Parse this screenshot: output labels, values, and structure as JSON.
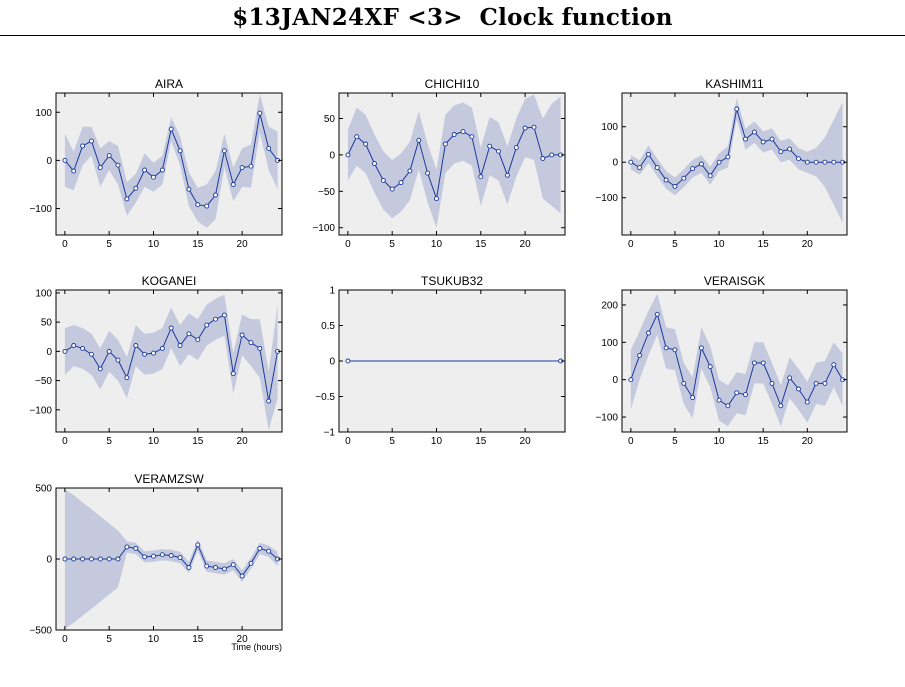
{
  "page_title": "$13JAN24XF <3>  Clock function",
  "x_axis_label": "Time (hours)",
  "colors": {
    "background": "#eeeeee",
    "band": "#c5c9de",
    "line": "#1a3a9c"
  },
  "chart_data": [
    {
      "type": "line",
      "title": "AIRA",
      "x": [
        0,
        1,
        2,
        3,
        4,
        5,
        6,
        7,
        8,
        9,
        10,
        11,
        12,
        13,
        14,
        15,
        16,
        17,
        18,
        19,
        20,
        21,
        22,
        23,
        24
      ],
      "values": [
        0,
        -22,
        30,
        40,
        -15,
        10,
        -10,
        -80,
        -58,
        -20,
        -35,
        -20,
        65,
        20,
        -60,
        -92,
        -95,
        -72,
        20,
        -50,
        -15,
        -12,
        98,
        25,
        0
      ],
      "band": [
        55,
        40,
        40,
        30,
        40,
        30,
        40,
        35,
        30,
        35,
        30,
        30,
        25,
        30,
        35,
        35,
        45,
        50,
        35,
        35,
        40,
        45,
        40,
        45,
        60
      ],
      "xlim": [
        -1,
        24.5
      ],
      "ylim": [
        -155,
        140
      ],
      "xticks": [
        0,
        5,
        10,
        15,
        20
      ],
      "yticks": [
        100,
        0,
        -100
      ],
      "ytick_labels": [
        "100",
        "0",
        "−100"
      ]
    },
    {
      "type": "line",
      "title": "CHICHI10",
      "x": [
        0,
        1,
        2,
        3,
        4,
        5,
        6,
        7,
        8,
        9,
        10,
        11,
        12,
        13,
        14,
        15,
        16,
        17,
        18,
        19,
        20,
        21,
        22,
        23,
        24
      ],
      "values": [
        0,
        25,
        15,
        -12,
        -35,
        -47,
        -38,
        -22,
        20,
        -25,
        -60,
        15,
        28,
        32,
        25,
        -30,
        12,
        5,
        -28,
        10,
        37,
        38,
        -5,
        0,
        0
      ],
      "band": [
        35,
        40,
        40,
        40,
        40,
        40,
        40,
        40,
        40,
        40,
        40,
        40,
        40,
        40,
        40,
        40,
        40,
        40,
        40,
        40,
        40,
        45,
        55,
        70,
        80
      ],
      "xlim": [
        -1,
        24.5
      ],
      "ylim": [
        -110,
        85
      ],
      "xticks": [
        0,
        5,
        10,
        15,
        20
      ],
      "yticks": [
        50,
        0,
        -50,
        -100
      ],
      "ytick_labels": [
        "50",
        "0",
        "−50",
        "−100"
      ]
    },
    {
      "type": "line",
      "title": "KASHIM11",
      "x": [
        0,
        1,
        2,
        3,
        4,
        5,
        6,
        7,
        8,
        9,
        10,
        11,
        12,
        13,
        14,
        15,
        16,
        17,
        18,
        19,
        20,
        21,
        22,
        23,
        24
      ],
      "values": [
        0,
        -15,
        22,
        -15,
        -50,
        -68,
        -45,
        -18,
        -5,
        -38,
        0,
        15,
        150,
        65,
        85,
        57,
        65,
        30,
        37,
        10,
        0,
        0,
        0,
        0,
        0
      ],
      "band": [
        20,
        20,
        25,
        25,
        25,
        25,
        25,
        25,
        25,
        25,
        25,
        30,
        30,
        30,
        30,
        30,
        30,
        30,
        30,
        30,
        30,
        40,
        70,
        120,
        170
      ],
      "xlim": [
        -1,
        24.5
      ],
      "ylim": [
        -205,
        195
      ],
      "xticks": [
        0,
        5,
        10,
        15,
        20
      ],
      "yticks": [
        100,
        0,
        -100
      ],
      "ytick_labels": [
        "100",
        "0",
        "−100"
      ]
    },
    {
      "type": "line",
      "title": "KOGANEI",
      "x": [
        0,
        1,
        2,
        3,
        4,
        5,
        6,
        7,
        8,
        9,
        10,
        11,
        12,
        13,
        14,
        15,
        16,
        17,
        18,
        19,
        20,
        21,
        22,
        23,
        24
      ],
      "values": [
        0,
        10,
        5,
        -5,
        -30,
        0,
        -15,
        -45,
        10,
        -5,
        -3,
        5,
        40,
        10,
        30,
        20,
        45,
        55,
        62,
        -38,
        28,
        15,
        5,
        -85,
        0
      ],
      "band": [
        40,
        35,
        35,
        35,
        35,
        35,
        35,
        35,
        35,
        35,
        35,
        35,
        35,
        35,
        35,
        35,
        35,
        35,
        35,
        35,
        35,
        40,
        50,
        50,
        80
      ],
      "xlim": [
        -1,
        24.5
      ],
      "ylim": [
        -138,
        105
      ],
      "xticks": [
        0,
        5,
        10,
        15,
        20
      ],
      "yticks": [
        100,
        50,
        0,
        -50,
        -100
      ],
      "ytick_labels": [
        "100",
        "50",
        "0",
        "−50",
        "−100"
      ]
    },
    {
      "type": "line",
      "title": "TSUKUB32",
      "x": [
        0,
        24
      ],
      "values": [
        0,
        0
      ],
      "band": [
        0,
        0
      ],
      "xlim": [
        -1,
        24.5
      ],
      "ylim": [
        -1,
        1
      ],
      "xticks": [
        0,
        5,
        10,
        15,
        20
      ],
      "yticks": [
        1,
        0.5,
        0,
        -0.5,
        -1
      ],
      "ytick_labels": [
        "1",
        "0.5",
        "0",
        "−0.5",
        "−1"
      ]
    },
    {
      "type": "line",
      "title": "VERAISGK",
      "x": [
        0,
        1,
        2,
        3,
        4,
        5,
        6,
        7,
        8,
        9,
        10,
        11,
        12,
        13,
        14,
        15,
        16,
        17,
        18,
        19,
        20,
        21,
        22,
        23,
        24
      ],
      "values": [
        0,
        65,
        125,
        175,
        85,
        80,
        -10,
        -48,
        85,
        35,
        -55,
        -70,
        -35,
        -40,
        45,
        45,
        -10,
        -70,
        5,
        -25,
        -60,
        -10,
        -10,
        40,
        0
      ],
      "band": [
        80,
        65,
        60,
        55,
        55,
        55,
        55,
        55,
        55,
        55,
        55,
        55,
        55,
        55,
        55,
        55,
        55,
        55,
        55,
        55,
        55,
        55,
        60,
        60,
        70
      ],
      "xlim": [
        -1,
        24.5
      ],
      "ylim": [
        -140,
        240
      ],
      "xticks": [
        0,
        5,
        10,
        15,
        20
      ],
      "yticks": [
        200,
        100,
        0,
        -100
      ],
      "ytick_labels": [
        "200",
        "100",
        "0",
        "−100"
      ]
    },
    {
      "type": "line",
      "title": "VERAMZSW",
      "x": [
        0,
        1,
        2,
        3,
        4,
        5,
        6,
        7,
        8,
        9,
        10,
        11,
        12,
        13,
        14,
        15,
        16,
        17,
        18,
        19,
        20,
        21,
        22,
        23,
        24
      ],
      "values": [
        0,
        0,
        0,
        0,
        0,
        0,
        0,
        85,
        75,
        15,
        20,
        30,
        25,
        10,
        -60,
        100,
        -50,
        -60,
        -70,
        -40,
        -120,
        -30,
        75,
        55,
        0
      ],
      "band": [
        490,
        450,
        400,
        350,
        300,
        250,
        200,
        40,
        40,
        40,
        40,
        40,
        40,
        40,
        40,
        40,
        40,
        40,
        40,
        40,
        40,
        40,
        40,
        40,
        50
      ],
      "xlim": [
        -1,
        24.5
      ],
      "ylim": [
        -500,
        500
      ],
      "xticks": [
        0,
        5,
        10,
        15,
        20
      ],
      "yticks": [
        500,
        0,
        -500
      ],
      "ytick_labels": [
        "500",
        "0",
        "−500"
      ]
    }
  ]
}
